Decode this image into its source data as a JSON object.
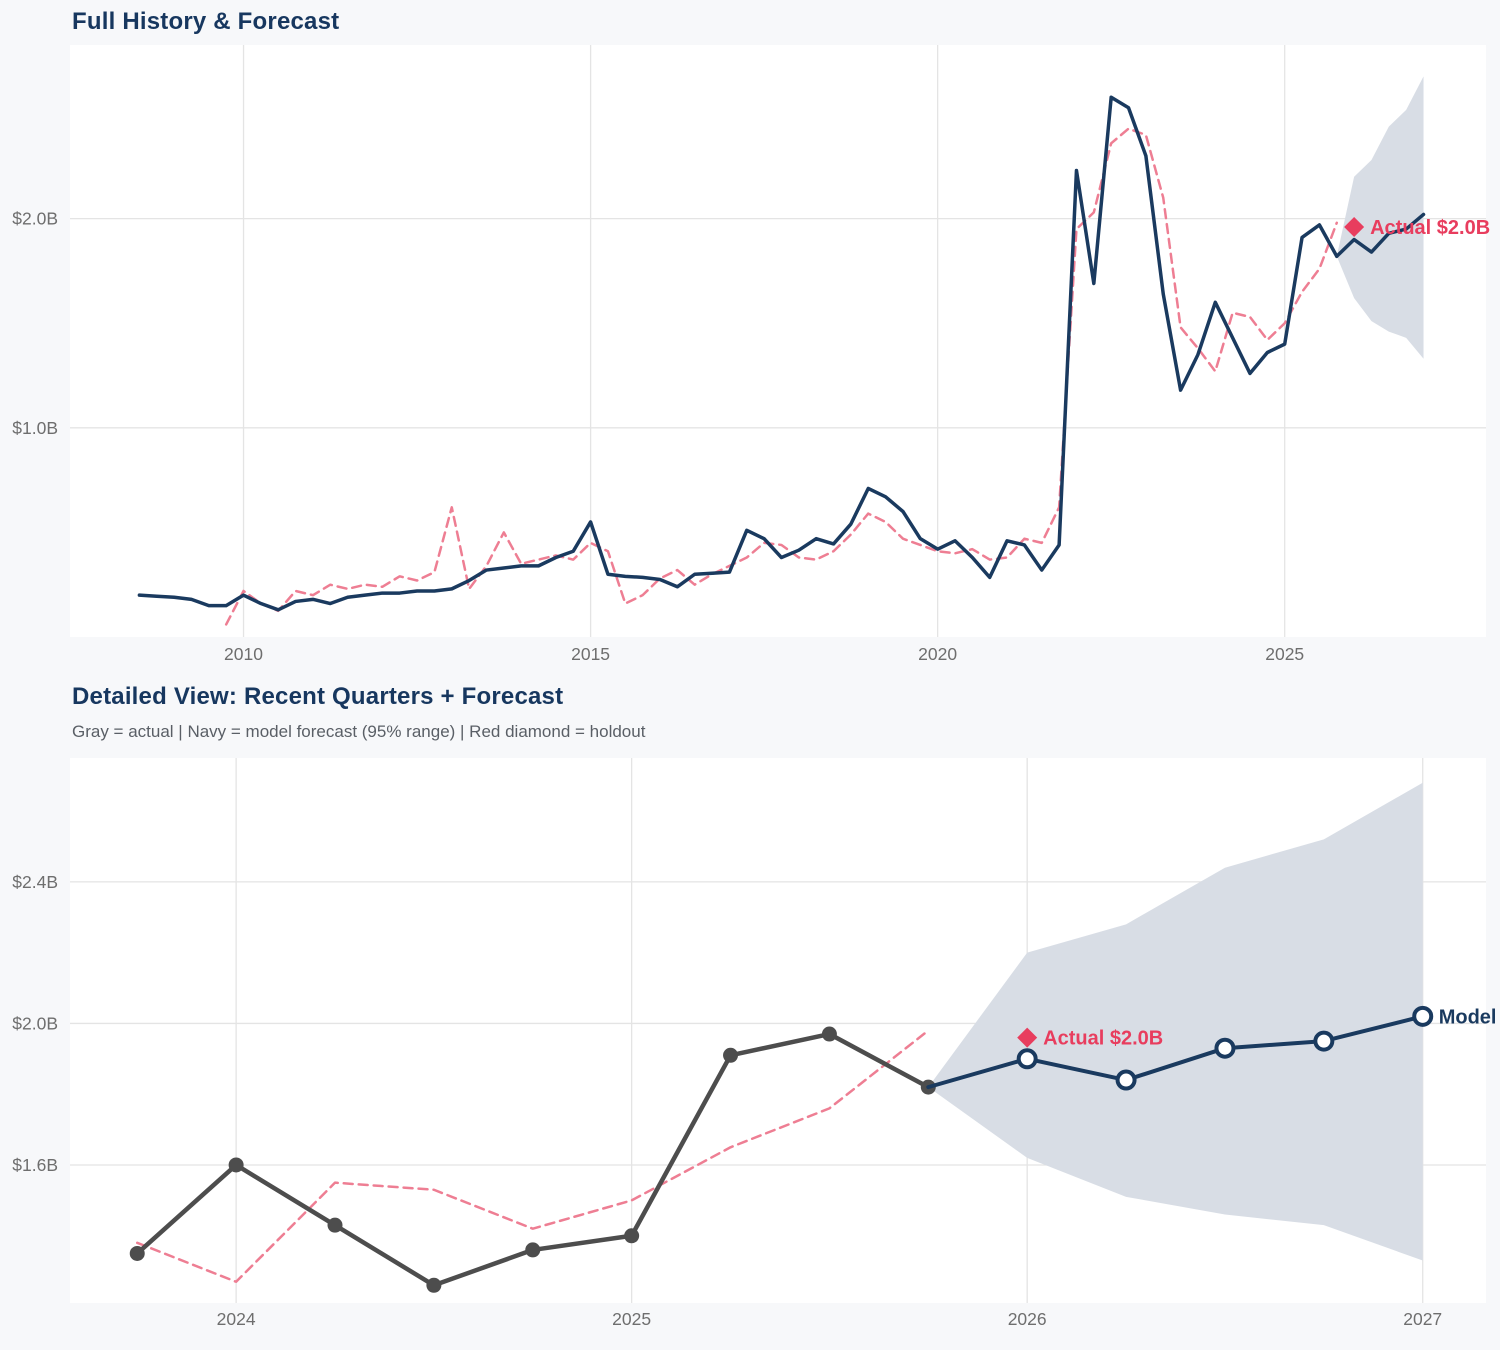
{
  "page": {
    "background_color": "#f7f8fa",
    "plot_background_color": "#ffffff"
  },
  "colors": {
    "navy": "#1a3a5f",
    "pink_dashed": "#ee7e93",
    "crimson_marker": "#e83d5e",
    "band_gray": "#d8dde5",
    "actual_gray": "#4d4d4d",
    "gridline": "#e4e4e4",
    "tick_label": "#6e6e6e",
    "title": "#17375f",
    "subtitle": "#5a5f66"
  },
  "chart_data": [
    {
      "id": "full-history",
      "type": "line",
      "title": "Full History & Forecast",
      "x_range": [
        2007.5,
        2027.9
      ],
      "y_range": [
        0,
        2.83
      ],
      "x_ticks": {
        "values": [
          2010,
          2015,
          2020,
          2025
        ],
        "labels": [
          "2010",
          "2015",
          "2020",
          "2025"
        ]
      },
      "y_ticks": {
        "values": [
          1.0,
          2.0
        ],
        "labels": [
          "$1.0B",
          "$2.0B"
        ]
      },
      "grid": true,
      "legend_position": "none",
      "band": {
        "name": "forecast-95-band",
        "color": "#d8dde5",
        "x": [
          2025.75,
          2026.0,
          2026.25,
          2026.5,
          2026.75,
          2027.0
        ],
        "lo": [
          1.82,
          1.62,
          1.51,
          1.46,
          1.43,
          1.33
        ],
        "hi": [
          1.82,
          2.2,
          2.28,
          2.44,
          2.52,
          2.68
        ]
      },
      "series": [
        {
          "name": "model-fit",
          "color": "#ee7e93",
          "style": "dashed",
          "marker": "none",
          "x": [
            2009.75,
            2010,
            2010.25,
            2010.5,
            2010.75,
            2011,
            2011.25,
            2011.5,
            2011.75,
            2012,
            2012.25,
            2012.5,
            2012.75,
            2013,
            2013.25,
            2013.5,
            2013.75,
            2014,
            2014.25,
            2014.5,
            2014.75,
            2015,
            2015.25,
            2015.5,
            2015.75,
            2016,
            2016.25,
            2016.5,
            2016.75,
            2017,
            2017.25,
            2017.5,
            2017.75,
            2018,
            2018.25,
            2018.5,
            2018.75,
            2019,
            2019.25,
            2019.5,
            2019.75,
            2020,
            2020.25,
            2020.5,
            2020.75,
            2021,
            2021.25,
            2021.5,
            2021.75,
            2022,
            2022.25,
            2022.5,
            2022.75,
            2023,
            2023.25,
            2023.5,
            2023.75,
            2024,
            2024.25,
            2024.5,
            2024.75,
            2025,
            2025.25,
            2025.5,
            2025.75
          ],
          "y": [
            0.06,
            0.22,
            0.16,
            0.125,
            0.22,
            0.2,
            0.25,
            0.23,
            0.25,
            0.24,
            0.29,
            0.27,
            0.31,
            0.62,
            0.23,
            0.34,
            0.5,
            0.35,
            0.37,
            0.39,
            0.37,
            0.45,
            0.41,
            0.16,
            0.2,
            0.28,
            0.32,
            0.25,
            0.3,
            0.34,
            0.38,
            0.45,
            0.44,
            0.38,
            0.37,
            0.41,
            0.49,
            0.59,
            0.55,
            0.47,
            0.44,
            0.41,
            0.4,
            0.42,
            0.37,
            0.38,
            0.47,
            0.45,
            0.62,
            1.95,
            2.03,
            2.36,
            2.43,
            2.4,
            2.1,
            1.48,
            1.38,
            1.27,
            1.55,
            1.53,
            1.42,
            1.5,
            1.65,
            1.76,
            1.98
          ]
        },
        {
          "name": "actual-history",
          "color": "#1a3a5f",
          "style": "solid",
          "marker": "none",
          "x": [
            2008.5,
            2008.75,
            2009,
            2009.25,
            2009.5,
            2009.75,
            2010,
            2010.25,
            2010.5,
            2010.75,
            2011,
            2011.25,
            2011.5,
            2011.75,
            2012,
            2012.25,
            2012.5,
            2012.75,
            2013,
            2013.25,
            2013.5,
            2013.75,
            2014,
            2014.25,
            2014.5,
            2014.75,
            2015,
            2015.25,
            2015.5,
            2015.75,
            2016,
            2016.25,
            2016.5,
            2016.75,
            2017,
            2017.25,
            2017.5,
            2017.75,
            2018,
            2018.25,
            2018.5,
            2018.75,
            2019,
            2019.25,
            2019.5,
            2019.75,
            2020,
            2020.25,
            2020.5,
            2020.75,
            2021,
            2021.25,
            2021.5,
            2021.75,
            2022,
            2022.25,
            2022.5,
            2022.75,
            2023,
            2023.25,
            2023.5,
            2023.75,
            2024,
            2024.25,
            2024.5,
            2024.75,
            2025,
            2025.25,
            2025.5,
            2025.75
          ],
          "y": [
            0.2,
            0.195,
            0.19,
            0.18,
            0.15,
            0.15,
            0.2,
            0.16,
            0.13,
            0.17,
            0.18,
            0.16,
            0.19,
            0.2,
            0.21,
            0.21,
            0.22,
            0.22,
            0.23,
            0.27,
            0.32,
            0.33,
            0.34,
            0.34,
            0.38,
            0.41,
            0.55,
            0.3,
            0.29,
            0.285,
            0.275,
            0.24,
            0.3,
            0.305,
            0.31,
            0.51,
            0.47,
            0.38,
            0.415,
            0.47,
            0.445,
            0.54,
            0.71,
            0.67,
            0.6,
            0.47,
            0.42,
            0.46,
            0.38,
            0.285,
            0.46,
            0.44,
            0.32,
            0.44,
            2.23,
            1.69,
            2.58,
            2.53,
            2.3,
            1.64,
            1.18,
            1.35,
            1.6,
            1.43,
            1.26,
            1.36,
            1.4,
            1.91,
            1.97,
            1.82
          ]
        },
        {
          "name": "model-forecast",
          "color": "#1a3a5f",
          "style": "solid",
          "marker": "none",
          "x": [
            2025.75,
            2026.0,
            2026.25,
            2026.5,
            2026.75,
            2027.0
          ],
          "y": [
            1.82,
            1.9,
            1.84,
            1.93,
            1.95,
            2.02
          ]
        }
      ],
      "annotations": [
        {
          "text": "Actual $2.0B",
          "x": 2026.0,
          "y": 1.96,
          "marker": "diamond",
          "color": "#e83d5e"
        }
      ]
    },
    {
      "id": "detailed-view",
      "type": "line",
      "title": "Detailed View: Recent Quarters + Forecast",
      "subtitle": "Gray = actual  |  Navy = model forecast (95% range)  |  Red diamond = holdout",
      "x_range": [
        2023.58,
        2027.16
      ],
      "y_range": [
        1.21,
        2.75
      ],
      "x_ticks": {
        "values": [
          2024,
          2025,
          2026,
          2027
        ],
        "labels": [
          "2024",
          "2025",
          "2026",
          "2027"
        ]
      },
      "y_ticks": {
        "values": [
          1.6,
          2.0,
          2.4
        ],
        "labels": [
          "$1.6B",
          "$2.0B",
          "$2.4B"
        ]
      },
      "grid": true,
      "legend_position": "none",
      "band": {
        "name": "forecast-95-band",
        "color": "#d8dde5",
        "x": [
          2025.75,
          2026.0,
          2026.25,
          2026.5,
          2026.75,
          2027.0
        ],
        "lo": [
          1.82,
          1.62,
          1.51,
          1.46,
          1.43,
          1.33
        ],
        "hi": [
          1.82,
          2.2,
          2.28,
          2.44,
          2.52,
          2.68
        ]
      },
      "series": [
        {
          "name": "model-fit",
          "color": "#ee7e93",
          "style": "dashed",
          "marker": "none",
          "x": [
            2023.75,
            2024.0,
            2024.25,
            2024.5,
            2024.75,
            2025.0,
            2025.25,
            2025.5,
            2025.75
          ],
          "y": [
            1.38,
            1.27,
            1.55,
            1.53,
            1.42,
            1.5,
            1.65,
            1.76,
            1.98
          ]
        },
        {
          "name": "actual-quarters",
          "color": "#4d4d4d",
          "style": "solid",
          "marker": "dot",
          "x": [
            2023.75,
            2024.0,
            2024.25,
            2024.5,
            2024.75,
            2025.0,
            2025.25,
            2025.5,
            2025.75
          ],
          "y": [
            1.35,
            1.6,
            1.43,
            1.26,
            1.36,
            1.4,
            1.91,
            1.97,
            1.82
          ]
        },
        {
          "name": "model-forecast",
          "color": "#1a3a5f",
          "style": "solid",
          "marker": "open",
          "marker_from": 1,
          "x": [
            2025.75,
            2026.0,
            2026.25,
            2026.5,
            2026.75,
            2027.0
          ],
          "y": [
            1.82,
            1.9,
            1.84,
            1.93,
            1.95,
            2.02
          ]
        }
      ],
      "annotations": [
        {
          "text": "Actual $2.0B",
          "x": 2026.0,
          "y": 1.96,
          "marker": "diamond",
          "color": "#e83d5e"
        },
        {
          "text": "Model",
          "x": 2027.0,
          "y": 2.02,
          "marker": "none",
          "color": "#1a3a5f"
        }
      ]
    }
  ]
}
